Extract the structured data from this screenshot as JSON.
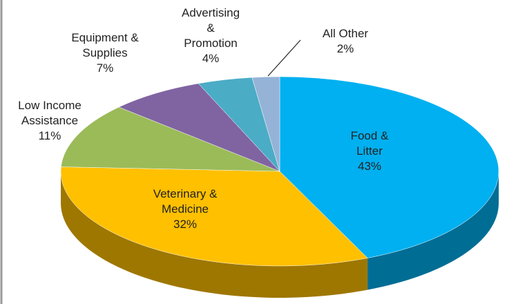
{
  "chart_data": {
    "type": "pie",
    "categories": [
      "Food & Litter",
      "Veterinary & Medicine",
      "Low Income Assistance",
      "Equipment & Supplies",
      "Advertising & Promotion",
      "All Other"
    ],
    "values": [
      43,
      32,
      11,
      7,
      4,
      2
    ],
    "value_labels": [
      "43%",
      "32%",
      "11%",
      "7%",
      "4%",
      "2%"
    ],
    "colors": [
      "#00b0f0",
      "#ffc000",
      "#9bbb59",
      "#8064a2",
      "#4bacc6",
      "#95b3d7"
    ]
  }
}
